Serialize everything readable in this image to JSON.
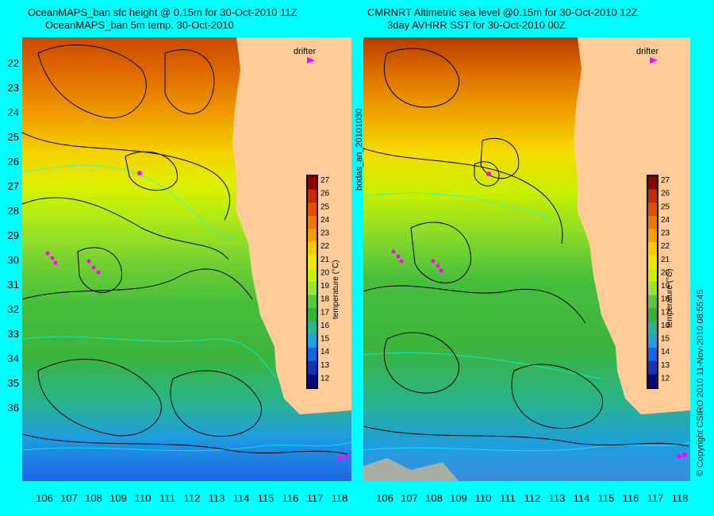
{
  "titles": {
    "left_line1": "OceanMAPS_ban sfc height @ 0.15m for 30-Oct-2010 11Z",
    "left_line2": "OceanMAPS_ban 5m temp. 30-Oct-2010",
    "right_line1": "CMRNRT Altimetric sea level  @0.15m  for 30-Oct-2010 12Z",
    "right_line2": "3day AVHRR SST for 30-Oct-2010 00Z"
  },
  "latitude_ticks": [
    "22",
    "23",
    "24",
    "25",
    "26",
    "27",
    "28",
    "29",
    "30",
    "31",
    "32",
    "33",
    "34",
    "35",
    "36"
  ],
  "longitude_ticks": [
    "106",
    "107",
    "108",
    "109",
    "110",
    "111",
    "112",
    "113",
    "114",
    "115",
    "116",
    "117",
    "118"
  ],
  "colorbar": {
    "label": "temperature (°C)",
    "ticks": [
      "27",
      "26",
      "25",
      "24",
      "23",
      "22",
      "21",
      "20",
      "19",
      "18",
      "17",
      "16",
      "15",
      "14",
      "13",
      "12"
    ],
    "colors": [
      "#8b0000",
      "#c82800",
      "#e05000",
      "#ee7800",
      "#f5a000",
      "#fac800",
      "#f0e600",
      "#c8f000",
      "#96e632",
      "#5ac83c",
      "#32b432",
      "#28b496",
      "#20a0dc",
      "#1464e6",
      "#1432b4",
      "#0a0a78"
    ]
  },
  "drifter_label": "drifter",
  "run_label": "bodas_an_20101030",
  "copyright": "© Copyright CSIRO 2010   11-Nov-2010 08:55:45",
  "colors": {
    "background": "#00ffff",
    "land": "#ffcc99",
    "contour": "#000000",
    "drifter": "#ff00ff"
  }
}
